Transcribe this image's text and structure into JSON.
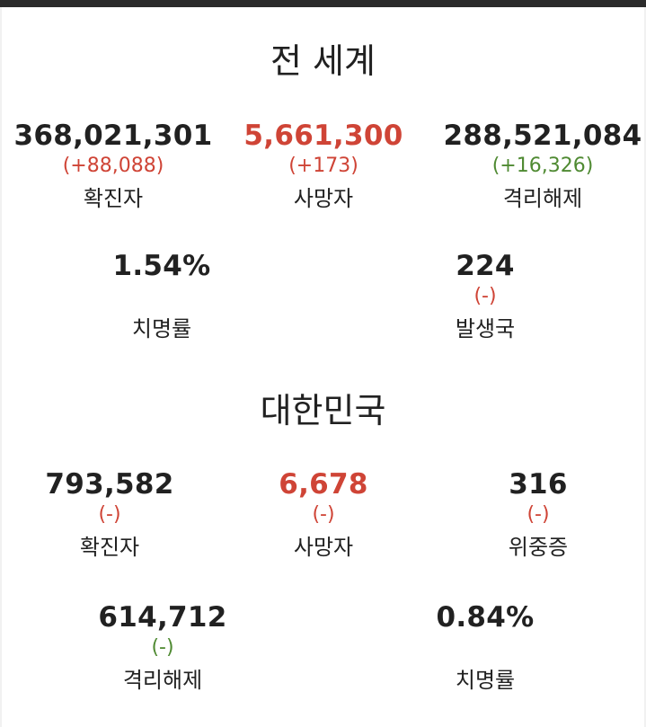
{
  "colors": {
    "death_red": "#cf4436",
    "increase_red": "#cf4436",
    "recovery_green": "#4f8a32",
    "text_dark": "#212121"
  },
  "world": {
    "title": "전 세계",
    "confirmed": {
      "value": "368,021,301",
      "change": "(+88,088)",
      "label": "확진자"
    },
    "deaths": {
      "value": "5,661,300",
      "change": "(+173)",
      "label": "사망자"
    },
    "released": {
      "value": "288,521,084",
      "change": "(+16,326)",
      "label": "격리해제"
    },
    "fatality_rate": {
      "value": "1.54%",
      "label": "치명률"
    },
    "countries": {
      "value": "224",
      "change": "(-)",
      "label": "발생국"
    }
  },
  "korea": {
    "title": "대한민국",
    "confirmed": {
      "value": "793,582",
      "change": "(-)",
      "label": "확진자"
    },
    "deaths": {
      "value": "6,678",
      "change": "(-)",
      "label": "사망자"
    },
    "critical": {
      "value": "316",
      "change": "(-)",
      "label": "위중증"
    },
    "released": {
      "value": "614,712",
      "change": "(-)",
      "label": "격리해제"
    },
    "fatality_rate": {
      "value": "0.84%",
      "label": "치명률"
    }
  }
}
